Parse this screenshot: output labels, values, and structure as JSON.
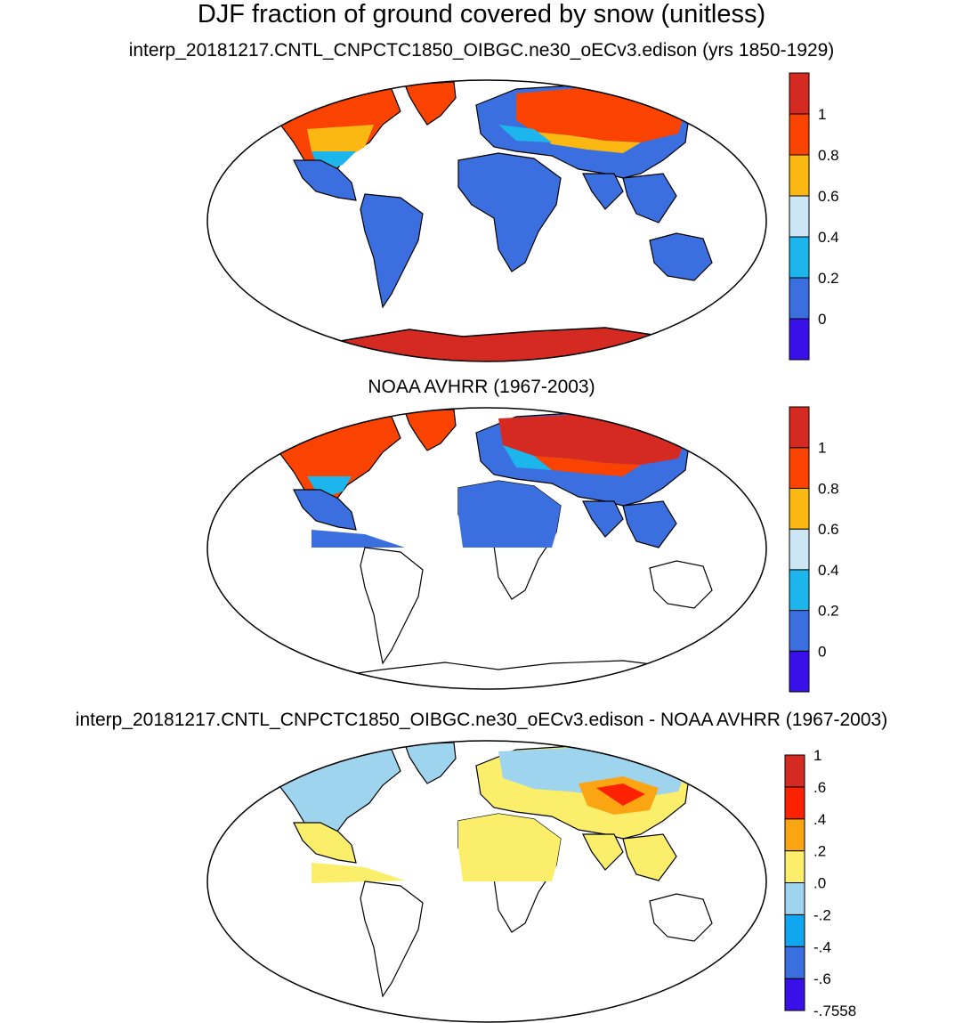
{
  "title": "DJF fraction of ground covered by snow (unitless)",
  "panels": [
    {
      "title": "interp_20181217.CNTL_CNPCTC1850_OIBGC.ne30_oECv3.edison (yrs 1850-1929)",
      "colorbar": {
        "labels": [
          "0",
          "0.2",
          "0.4",
          "0.6",
          "0.8",
          "1"
        ],
        "colors": [
          "#3a10e8",
          "#3b6fe0",
          "#1cb6ec",
          "#cde6f6",
          "#fbb813",
          "#fa4300",
          "#d42a22"
        ]
      }
    },
    {
      "title": "NOAA AVHRR (1967-2003)",
      "colorbar": {
        "labels": [
          "0",
          "0.2",
          "0.4",
          "0.6",
          "0.8",
          "1"
        ],
        "colors": [
          "#3a10e8",
          "#3b6fe0",
          "#1cb6ec",
          "#cde6f6",
          "#fbb813",
          "#fa4300",
          "#d42a22"
        ]
      }
    },
    {
      "title": "interp_20181217.CNTL_CNPCTC1850_OIBGC.ne30_oECv3.edison - NOAA AVHRR (1967-2003)",
      "colorbar": {
        "labels": [
          "-.7558",
          "-.6",
          "-.4",
          "-.2",
          ".0",
          ".2",
          ".4",
          ".6",
          "1"
        ],
        "colors": [
          "#3a10e8",
          "#3b6fe0",
          "#10a6f0",
          "#9fd4ee",
          "#fbee6b",
          "#fba513",
          "#fc2200",
          "#d42a22"
        ]
      }
    }
  ]
}
